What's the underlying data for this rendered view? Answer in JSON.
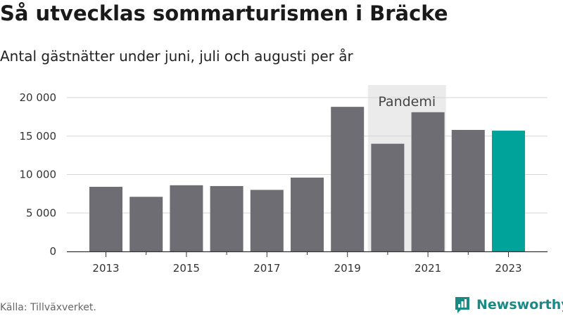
{
  "header": {
    "title": "Så utvecklas sommarturismen i Bräcke",
    "subtitle": "Antal gästnätter under juni, juli och augusti per år"
  },
  "footer": {
    "source": "Källa: Tillväxverket.",
    "brand": "Newsworthy"
  },
  "colors": {
    "bar": "#6e6d73",
    "highlight": "#00a39a",
    "band": "#ebebeb",
    "brand": "#1a8a86"
  },
  "chart_data": {
    "type": "bar",
    "title": "Så utvecklas sommarturismen i Bräcke",
    "subtitle": "Antal gästnätter under juni, juli och augusti per år",
    "categories": [
      "2013",
      "2014",
      "2015",
      "2016",
      "2017",
      "2018",
      "2019",
      "2020",
      "2021",
      "2022",
      "2023"
    ],
    "values": [
      8400,
      7100,
      8600,
      8500,
      8000,
      9600,
      18800,
      14000,
      18100,
      15800,
      15700
    ],
    "highlight_index": 10,
    "x_tick_labels": [
      "2013",
      "2015",
      "2017",
      "2019",
      "2021",
      "2023"
    ],
    "y_ticks": [
      0,
      5000,
      10000,
      15000,
      20000
    ],
    "y_tick_labels": [
      "0",
      "5 000",
      "10 000",
      "15 000",
      "20 000"
    ],
    "ylim": [
      0,
      20000
    ],
    "grid": "horizontal",
    "annotation": {
      "label": "Pandemi",
      "from": "2020",
      "to": "2021"
    }
  }
}
